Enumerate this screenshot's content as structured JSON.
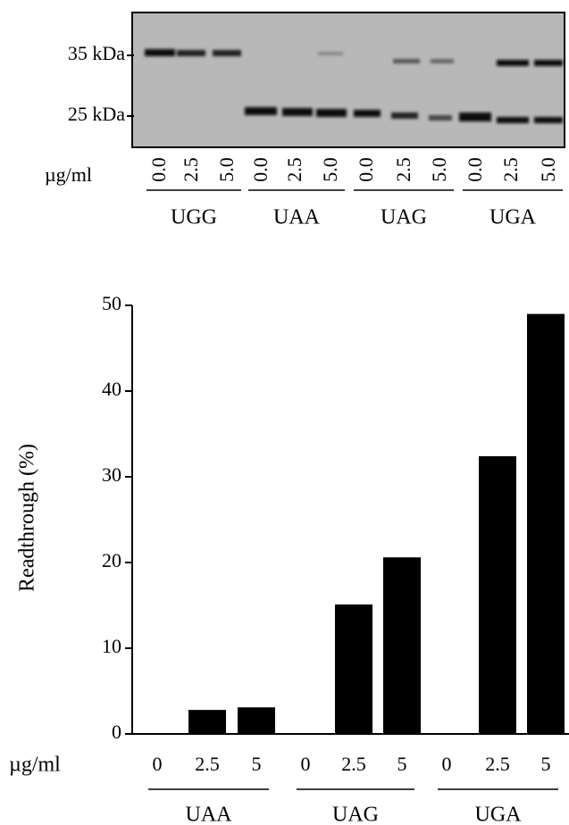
{
  "gel": {
    "markers": [
      "35 kDa",
      "25 kDa"
    ],
    "unit": "µg/ml",
    "lanes": [
      "0.0",
      "2.5",
      "5.0",
      "0.0",
      "2.5",
      "5.0",
      "0.0",
      "2.5",
      "5.0",
      "0.0",
      "2.5",
      "5.0"
    ],
    "groups": [
      "UGG",
      "UAA",
      "UAG",
      "UGA"
    ]
  },
  "chart_data": {
    "type": "bar",
    "y_label": "Readthrough (%)",
    "x_unit": "µg/ml",
    "categories": [
      "0",
      "2.5",
      "5",
      "0",
      "2.5",
      "5",
      "0",
      "2.5",
      "5"
    ],
    "groups": [
      "UAA",
      "UAG",
      "UGA"
    ],
    "values": [
      0,
      2.8,
      3.1,
      0,
      15.1,
      20.6,
      0,
      32.4,
      49
    ],
    "color": "#000000",
    "ylim": [
      0,
      50
    ],
    "yticks": [
      0,
      10,
      20,
      30,
      40,
      50
    ]
  }
}
